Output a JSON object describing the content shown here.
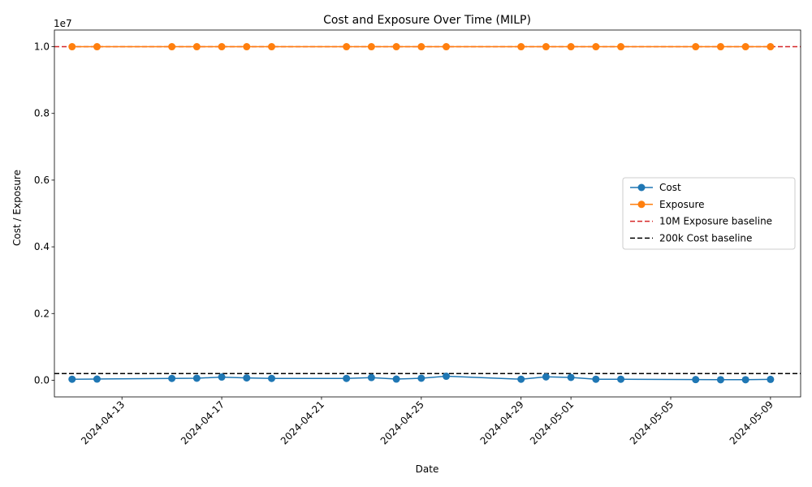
{
  "chart_data": {
    "type": "line",
    "title": "Cost and Exposure Over Time (MILP)",
    "xlabel": "Date",
    "ylabel": "Cost / Exposure",
    "y_offset_label": "1e7",
    "y_scale_factor": 10000000,
    "ylim": [
      -500000,
      10500000
    ],
    "xlim": [
      "2024-04-10T07:00",
      "2024-05-10T05:00"
    ],
    "x_ticks": [
      "2024-04-13",
      "2024-04-17",
      "2024-04-21",
      "2024-04-25",
      "2024-04-29",
      "2024-05-01",
      "2024-05-05",
      "2024-05-09"
    ],
    "y_ticks": [
      0.0,
      0.2,
      0.4,
      0.6,
      0.8,
      1.0
    ],
    "y_tick_labels": [
      "0.0",
      "0.2",
      "0.4",
      "0.6",
      "0.8",
      "1.0"
    ],
    "grid": false,
    "legend_position": "center-right",
    "series": [
      {
        "name": "Cost",
        "color": "#1f77b4",
        "marker": "circle",
        "x": [
          "2024-04-11",
          "2024-04-12",
          "2024-04-15",
          "2024-04-16",
          "2024-04-17",
          "2024-04-18",
          "2024-04-19",
          "2024-04-22",
          "2024-04-23",
          "2024-04-24",
          "2024-04-25",
          "2024-04-26",
          "2024-04-29",
          "2024-04-30",
          "2024-05-01",
          "2024-05-02",
          "2024-05-03",
          "2024-05-06",
          "2024-05-07",
          "2024-05-08",
          "2024-05-09"
        ],
        "values": [
          30000,
          35000,
          55000,
          60000,
          95000,
          70000,
          55000,
          55000,
          80000,
          35000,
          60000,
          120000,
          30000,
          100000,
          85000,
          30000,
          30000,
          20000,
          15000,
          15000,
          25000
        ]
      },
      {
        "name": "Exposure",
        "color": "#ff7f0e",
        "marker": "circle",
        "x": [
          "2024-04-11",
          "2024-04-12",
          "2024-04-15",
          "2024-04-16",
          "2024-04-17",
          "2024-04-18",
          "2024-04-19",
          "2024-04-22",
          "2024-04-23",
          "2024-04-24",
          "2024-04-25",
          "2024-04-26",
          "2024-04-29",
          "2024-04-30",
          "2024-05-01",
          "2024-05-02",
          "2024-05-03",
          "2024-05-06",
          "2024-05-07",
          "2024-05-08",
          "2024-05-09"
        ],
        "values": [
          10000000,
          10000000,
          10000000,
          10000000,
          10000000,
          10000000,
          10000000,
          10000000,
          10000000,
          10000000,
          10000000,
          10000000,
          10000000,
          10000000,
          10000000,
          10000000,
          10000000,
          10000000,
          10000000,
          10000000,
          10000000
        ]
      }
    ],
    "baselines": [
      {
        "name": "10M Exposure baseline",
        "value": 10000000,
        "color": "#d62728"
      },
      {
        "name": "200k Cost baseline",
        "value": 200000,
        "color": "#000000"
      }
    ]
  }
}
